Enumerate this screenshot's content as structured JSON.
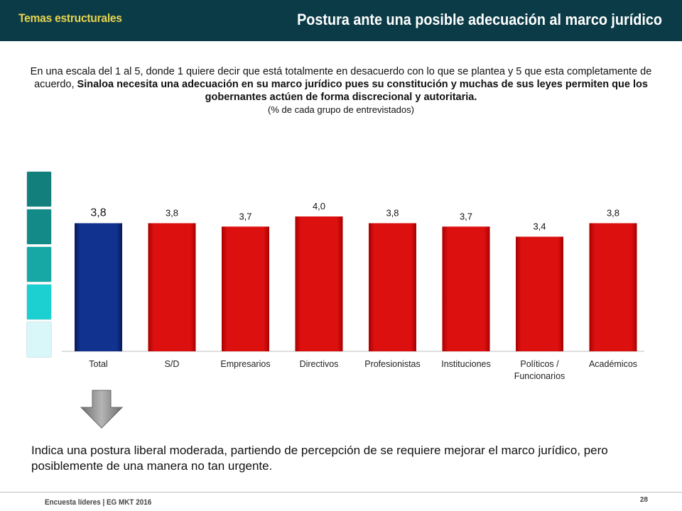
{
  "header": {
    "section": "Temas estructurales",
    "title": "Postura ante una posible adecuación al marco jurídico"
  },
  "question": {
    "part1": "En una escala del 1 al 5, donde 1 quiere decir que está totalmente en desacuerdo con lo que se plantea y 5 que esta completamente de acuerdo, ",
    "bold": "Sinaloa necesita una adecuación en su marco jurídico pues su constitución y muchas de sus leyes permiten que los gobernantes actúen de forma discrecional y autoritaria.",
    "note": "(% de cada grupo de entrevistados)"
  },
  "chart_data": {
    "type": "bar",
    "categories": [
      "Total",
      "S/D",
      "Empresarios",
      "Directivos",
      "Profesionistas",
      "Instituciones",
      "Políticos / Funcionarios",
      "Académicos"
    ],
    "category_lines": [
      [
        "Total"
      ],
      [
        "S/D"
      ],
      [
        "Empresarios"
      ],
      [
        "Directivos"
      ],
      [
        "Profesionistas"
      ],
      [
        "Instituciones"
      ],
      [
        "Políticos /",
        "Funcionarios"
      ],
      [
        "Académicos"
      ]
    ],
    "values": [
      3.8,
      3.8,
      3.7,
      4.0,
      3.8,
      3.7,
      3.4,
      3.8
    ],
    "value_labels": [
      "3,8",
      "3,8",
      "3,7",
      "4,0",
      "3,8",
      "3,7",
      "3,4",
      "3,8"
    ],
    "colors": [
      "#0d2b80",
      "#cc0a0a",
      "#cc0a0a",
      "#cc0a0a",
      "#cc0a0a",
      "#cc0a0a",
      "#cc0a0a",
      "#cc0a0a"
    ],
    "ylim": [
      0,
      5
    ],
    "grid": false
  },
  "scale_colors": [
    "#137f7d",
    "#138a88",
    "#17a8a6",
    "#1ccfd0",
    "#d9f6f8"
  ],
  "arrow_icon": "down-arrow-icon",
  "conclusion": "Indica una postura liberal moderada, partiendo de  percepción de se requiere mejorar el marco jurídico, pero posiblemente de una manera no tan urgente.",
  "footer": {
    "source": "Encuesta líderes | EG MKT 2016",
    "page": "28"
  }
}
